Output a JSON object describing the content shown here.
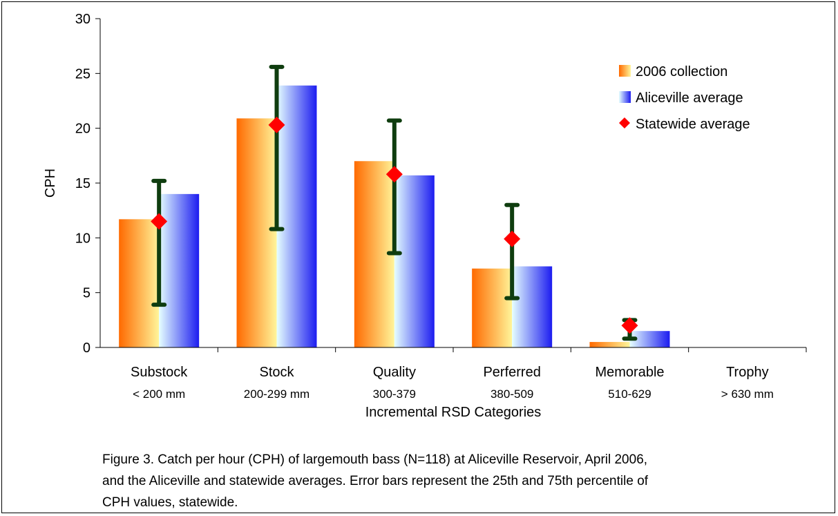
{
  "chart_data": {
    "type": "bar",
    "categories": [
      "Substock",
      "Stock",
      "Quality",
      "Perferred",
      "Memorable",
      "Trophy"
    ],
    "category_sublabels": [
      "< 200 mm",
      "200-299 mm",
      "300-379",
      "380-509",
      "510-629",
      "> 630 mm"
    ],
    "series": [
      {
        "name": "2006 collection",
        "values": [
          11.7,
          20.9,
          17.0,
          7.2,
          0.5,
          0.0
        ]
      },
      {
        "name": "Aliceville average",
        "values": [
          14.0,
          23.9,
          15.7,
          7.4,
          1.5,
          0.0
        ]
      }
    ],
    "points": {
      "name": "Statewide average",
      "values": [
        11.5,
        20.3,
        15.8,
        9.9,
        2.0,
        null
      ],
      "error_low": [
        3.9,
        10.8,
        8.6,
        4.5,
        0.8,
        null
      ],
      "error_high": [
        15.2,
        25.6,
        20.7,
        13.0,
        2.5,
        null
      ]
    },
    "xlabel": "Incremental RSD Categories",
    "ylabel": "CPH",
    "ylim": [
      0,
      30
    ],
    "yticks": [
      "0",
      "5",
      "10",
      "15",
      "20",
      "25",
      "30"
    ],
    "grid": false,
    "legend_position": "top-right",
    "colors": {
      "collection_gradient": [
        "#ff6a00",
        "#fff59a"
      ],
      "aliceville_gradient": [
        "#e6ffff",
        "#1c1cf0"
      ],
      "statewide_marker": "#ff0000",
      "error_bar": "#0f3d0f"
    }
  },
  "caption": {
    "line1": "Figure 3. Catch per hour (CPH) of largemouth bass (N=118) at Aliceville Reservoir, April 2006,",
    "line2": "and the Aliceville and statewide averages. Error bars represent the 25th and 75th percentile of",
    "line3": "CPH values, statewide."
  }
}
